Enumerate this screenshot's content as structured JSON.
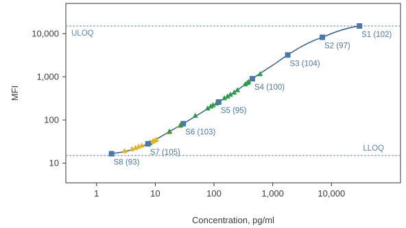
{
  "chart_data": {
    "type": "scatter",
    "xlabel": "Concentration, pg/ml",
    "ylabel": "MFI",
    "xscale": "log",
    "yscale": "log",
    "xlim": [
      0.3,
      150000
    ],
    "ylim": [
      3.5,
      50000
    ],
    "grid": false,
    "x_ticks": [
      {
        "value": 1,
        "label": "1"
      },
      {
        "value": 10,
        "label": "10"
      },
      {
        "value": 100,
        "label": "100"
      },
      {
        "value": 1000,
        "label": "1,000"
      },
      {
        "value": 10000,
        "label": "10,000"
      }
    ],
    "y_ticks": [
      {
        "value": 10,
        "label": "10"
      },
      {
        "value": 100,
        "label": "100"
      },
      {
        "value": 1000,
        "label": "1,000"
      },
      {
        "value": 10000,
        "label": "10,000"
      }
    ],
    "reference_lines": [
      {
        "label": "ULOQ",
        "y": 15000,
        "label_side": "left"
      },
      {
        "label": "LLOQ",
        "y": 15,
        "label_side": "right"
      }
    ],
    "colors": {
      "curve": "#2f5e8e",
      "standards": "#4a78a8",
      "samples_green": "#2e9a4e",
      "samples_yellow": "#e3b526",
      "reference": "#5b87b5",
      "axis": "#333333"
    },
    "standards": [
      {
        "label": "S1 (102)",
        "x": 30000,
        "y": 15000
      },
      {
        "label": "S2 (97)",
        "x": 7000,
        "y": 8200
      },
      {
        "label": "S3 (104)",
        "x": 1800,
        "y": 3200
      },
      {
        "label": "S4 (100)",
        "x": 450,
        "y": 900
      },
      {
        "label": "S5 (95)",
        "x": 120,
        "y": 260
      },
      {
        "label": "S6 (103)",
        "x": 30,
        "y": 82
      },
      {
        "label": "S7 (105)",
        "x": 7.5,
        "y": 28
      },
      {
        "label": "S8 (93)",
        "x": 1.8,
        "y": 16.5
      }
    ],
    "curve": {
      "x": [
        1.8,
        3,
        5,
        7.5,
        12,
        20,
        30,
        50,
        80,
        120,
        200,
        300,
        450,
        700,
        1000,
        1800,
        3000,
        5000,
        7000,
        12000,
        20000,
        30000
      ],
      "y": [
        16.5,
        18.5,
        22.5,
        28,
        40,
        60,
        82,
        125,
        185,
        260,
        400,
        590,
        900,
        1350,
        1850,
        3200,
        4900,
        6900,
        8200,
        11000,
        13500,
        15000
      ]
    },
    "sample_series": [
      {
        "color": "yellow",
        "points": [
          {
            "x": 3.0,
            "y": 19
          },
          {
            "x": 4.0,
            "y": 21
          },
          {
            "x": 4.6,
            "y": 22.5
          },
          {
            "x": 5.2,
            "y": 24
          },
          {
            "x": 5.9,
            "y": 25.5
          },
          {
            "x": 8.3,
            "y": 30
          },
          {
            "x": 9.0,
            "y": 31.5
          },
          {
            "x": 9.6,
            "y": 33
          },
          {
            "x": 10.4,
            "y": 35
          },
          {
            "x": 17.0,
            "y": 52
          },
          {
            "x": 26.0,
            "y": 73
          }
        ]
      },
      {
        "color": "green",
        "points": [
          {
            "x": 8.0,
            "y": 29
          },
          {
            "x": 17.5,
            "y": 54
          },
          {
            "x": 27.0,
            "y": 75
          },
          {
            "x": 48,
            "y": 125
          },
          {
            "x": 78,
            "y": 185
          },
          {
            "x": 88,
            "y": 205
          },
          {
            "x": 96,
            "y": 220
          },
          {
            "x": 110,
            "y": 242
          },
          {
            "x": 122,
            "y": 262
          },
          {
            "x": 150,
            "y": 320
          },
          {
            "x": 170,
            "y": 350
          },
          {
            "x": 190,
            "y": 385
          },
          {
            "x": 220,
            "y": 430
          },
          {
            "x": 250,
            "y": 490
          },
          {
            "x": 340,
            "y": 670
          },
          {
            "x": 370,
            "y": 720
          },
          {
            "x": 390,
            "y": 760
          },
          {
            "x": 610,
            "y": 1150
          }
        ]
      }
    ]
  }
}
